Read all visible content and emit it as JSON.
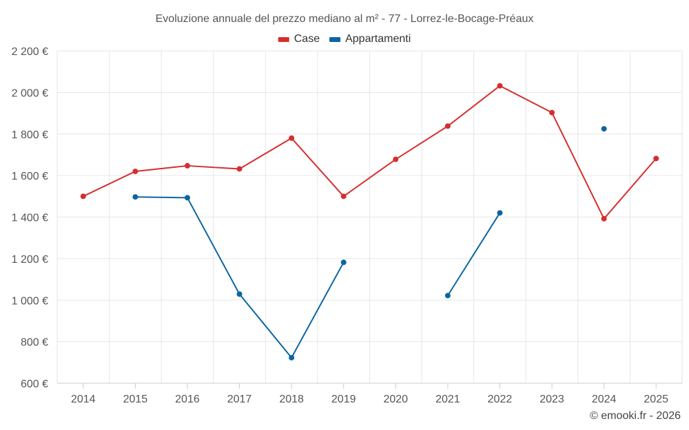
{
  "chart_data": {
    "type": "line",
    "title": "Evoluzione annuale del prezzo mediano al m² - 77 - Lorrez-le-Bocage-Préaux",
    "categories": [
      "2014",
      "2015",
      "2016",
      "2017",
      "2018",
      "2019",
      "2020",
      "2021",
      "2022",
      "2023",
      "2024",
      "2025"
    ],
    "series": [
      {
        "name": "Case",
        "color": "#d62d2d",
        "values": [
          1500,
          1620,
          1647,
          1632,
          1780,
          1500,
          1678,
          1838,
          2032,
          1903,
          1392,
          1682
        ]
      },
      {
        "name": "Appartamenti",
        "color": "#0a66a0",
        "values": [
          null,
          1497,
          1493,
          1029,
          723,
          1182,
          null,
          1022,
          1420,
          null,
          1825,
          null
        ]
      }
    ],
    "ylim": [
      600,
      2200
    ],
    "yticks": [
      600,
      800,
      1000,
      1200,
      1400,
      1600,
      1800,
      2000,
      2200
    ],
    "ytick_labels": [
      "600 €",
      "800 €",
      "1 000 €",
      "1 200 €",
      "1 400 €",
      "1 600 €",
      "1 800 €",
      "2 000 €",
      "2 200 €"
    ],
    "xlabel": "",
    "ylabel": "",
    "grid": true,
    "legend_position": "top-center"
  },
  "credit": "© emooki.fr - 2026"
}
